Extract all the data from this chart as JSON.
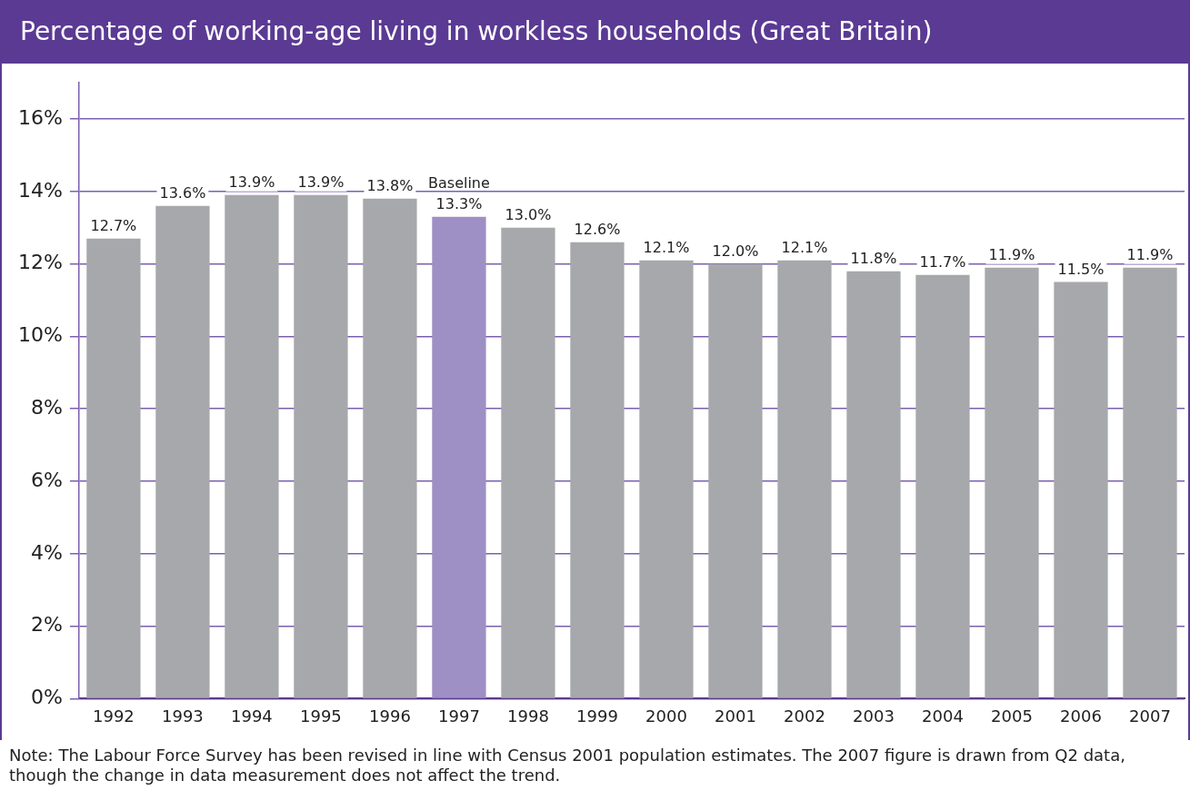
{
  "chart_data": {
    "type": "bar",
    "title": "Percentage of working-age living in workless households (Great Britain)",
    "categories": [
      "1992",
      "1993",
      "1994",
      "1995",
      "1996",
      "1997",
      "1998",
      "1999",
      "2000",
      "2001",
      "2002",
      "2003",
      "2004",
      "2005",
      "2006",
      "2007"
    ],
    "values": [
      12.7,
      13.6,
      13.9,
      13.9,
      13.8,
      13.3,
      13.0,
      12.6,
      12.1,
      12.0,
      12.1,
      11.8,
      11.7,
      11.9,
      11.5,
      11.9
    ],
    "value_labels": [
      "12.7%",
      "13.6%",
      "13.9%",
      "13.9%",
      "13.8%",
      "13.3%",
      "13.0%",
      "12.6%",
      "12.1%",
      "12.0%",
      "12.1%",
      "11.8%",
      "11.7%",
      "11.9%",
      "11.5%",
      "11.9%"
    ],
    "colors": [
      "#a7a8ab",
      "#a7a8ab",
      "#a7a8ab",
      "#a7a8ab",
      "#a7a8ab",
      "#9e8fc4",
      "#a7a8ab",
      "#a7a8ab",
      "#a7a8ab",
      "#a7a8ab",
      "#a7a8ab",
      "#a7a8ab",
      "#a7a8ab",
      "#a7a8ab",
      "#a7a8ab",
      "#a7a8ab"
    ],
    "ylim": [
      0,
      17
    ],
    "yticks": [
      {
        "value": 0,
        "label": "0%"
      },
      {
        "value": 2,
        "label": "2%"
      },
      {
        "value": 4,
        "label": "4%"
      },
      {
        "value": 6,
        "label": "6%"
      },
      {
        "value": 8,
        "label": "8%"
      },
      {
        "value": 10,
        "label": "10%"
      },
      {
        "value": 12,
        "label": "12%"
      },
      {
        "value": 14,
        "label": "14%"
      },
      {
        "value": 16,
        "label": "16%"
      }
    ],
    "grid": "y",
    "legend": false,
    "annotations": [
      {
        "text": "Baseline",
        "x": "1997",
        "y": 13.3
      },
      "Note: The Labour Force Survey has been revised in line with Census 2001 population estimates. The 2007 figure is drawn from Q2 data, though the change in data measurement does not affect the trend."
    ]
  }
}
